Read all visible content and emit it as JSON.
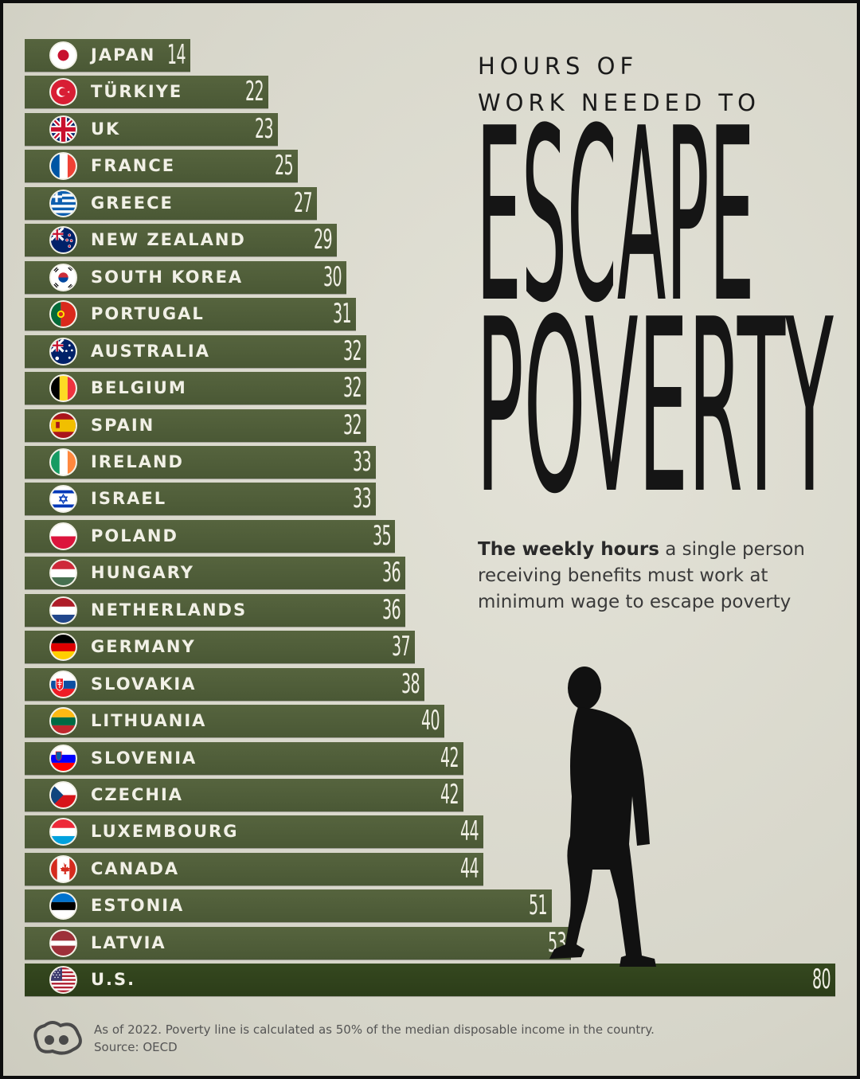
{
  "title": {
    "line1": "HOURS OF",
    "line2": "WORK NEEDED TO",
    "big1": "ESCAPE",
    "big2": "POVERTY"
  },
  "subtitle": {
    "bold": "The weekly hours",
    "rest": " a single person receiving benefits must work at minimum wage to escape poverty"
  },
  "footnote": {
    "note": "As of 2022. Poverty line is calculated as 50% of the median disposable income in the country.",
    "source": "Source: OECD"
  },
  "colors": {
    "bar": "#4f5d39",
    "bar_highlight": "#2f421c",
    "text_light": "#f1f0e6",
    "background": "#dcdbd0"
  },
  "chart_data": {
    "type": "bar",
    "orientation": "horizontal",
    "categories": [
      "JAPAN",
      "TÜRKIYE",
      "UK",
      "FRANCE",
      "GREECE",
      "NEW ZEALAND",
      "SOUTH KOREA",
      "PORTUGAL",
      "AUSTRALIA",
      "BELGIUM",
      "SPAIN",
      "IRELAND",
      "ISRAEL",
      "POLAND",
      "HUNGARY",
      "NETHERLANDS",
      "GERMANY",
      "SLOVAKIA",
      "LITHUANIA",
      "SLOVENIA",
      "CZECHIA",
      "LUXEMBOURG",
      "CANADA",
      "ESTONIA",
      "LATVIA",
      "U.S."
    ],
    "values": [
      14,
      22,
      23,
      25,
      27,
      29,
      30,
      31,
      32,
      32,
      32,
      33,
      33,
      35,
      36,
      36,
      37,
      38,
      40,
      42,
      42,
      44,
      44,
      51,
      53,
      80
    ],
    "flags": [
      "japan-flag",
      "turkiye-flag",
      "uk-flag",
      "france-flag",
      "greece-flag",
      "new-zealand-flag",
      "south-korea-flag",
      "portugal-flag",
      "australia-flag",
      "belgium-flag",
      "spain-flag",
      "ireland-flag",
      "israel-flag",
      "poland-flag",
      "hungary-flag",
      "netherlands-flag",
      "germany-flag",
      "slovakia-flag",
      "lithuania-flag",
      "slovenia-flag",
      "czechia-flag",
      "luxembourg-flag",
      "canada-flag",
      "estonia-flag",
      "latvia-flag",
      "us-flag"
    ],
    "title": "HOURS OF WORK NEEDED TO ESCAPE POVERTY",
    "xlabel": "",
    "ylabel": "",
    "grid": false
  }
}
